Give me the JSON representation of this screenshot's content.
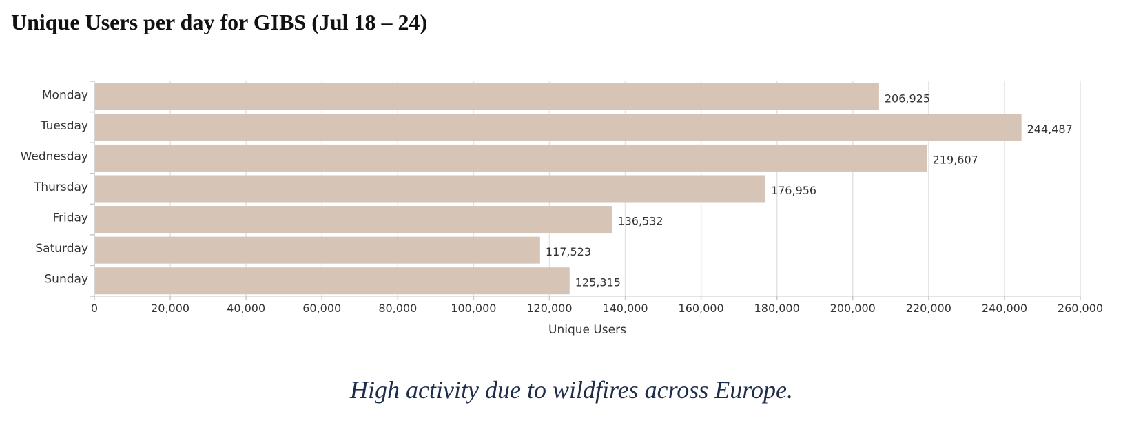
{
  "title": "Unique Users per day for GIBS (Jul 18 – 24)",
  "caption": "High activity due to wildfires across Europe.",
  "chart_data": {
    "type": "bar",
    "orientation": "horizontal",
    "title": "Unique Users per day for GIBS (Jul 18 – 24)",
    "xlabel": "Unique Users",
    "ylabel": "",
    "categories": [
      "Monday",
      "Tuesday",
      "Wednesday",
      "Thursday",
      "Friday",
      "Saturday",
      "Sunday"
    ],
    "values": [
      206925,
      244487,
      219607,
      176956,
      136532,
      117523,
      125315
    ],
    "value_labels": [
      "206,925",
      "244,487",
      "219,607",
      "176,956",
      "136,532",
      "117,523",
      "125,315"
    ],
    "xlim": [
      0,
      260000
    ],
    "xticks": [
      0,
      20000,
      40000,
      60000,
      80000,
      100000,
      120000,
      140000,
      160000,
      180000,
      200000,
      220000,
      240000,
      260000
    ],
    "xtick_labels": [
      "0",
      "20,000",
      "40,000",
      "60,000",
      "80,000",
      "100,000",
      "120,000",
      "140,000",
      "160,000",
      "180,000",
      "200,000",
      "220,000",
      "240,000",
      "260,000"
    ],
    "grid": true,
    "legend": "none",
    "bar_color": "#d6c4b6",
    "grid_color": "#e3e3e3",
    "axis_color": "#c8c8c8",
    "text_color": "#333333"
  }
}
